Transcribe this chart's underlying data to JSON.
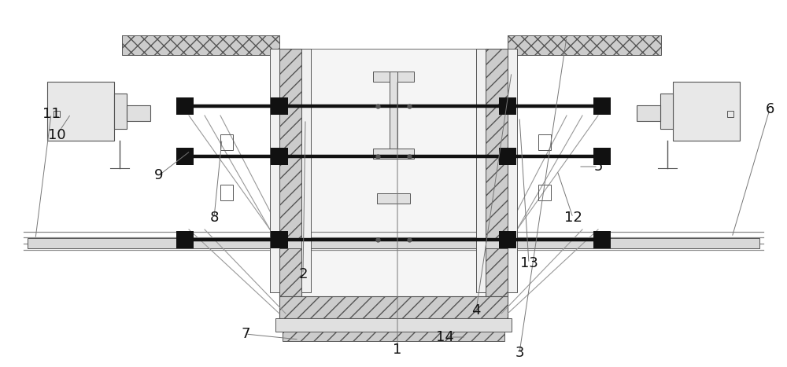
{
  "bg": "#ffffff",
  "lc": "#555555",
  "black": "#111111",
  "hatch_gray": "#bbbbbb",
  "light_gray": "#e8e8e8",
  "mid_gray": "#d0d0d0",
  "label_fs": 13,
  "xlim": [
    0,
    10
  ],
  "ylim": [
    0,
    4.67
  ],
  "figsize": [
    10.0,
    4.67
  ],
  "dpi": 100
}
